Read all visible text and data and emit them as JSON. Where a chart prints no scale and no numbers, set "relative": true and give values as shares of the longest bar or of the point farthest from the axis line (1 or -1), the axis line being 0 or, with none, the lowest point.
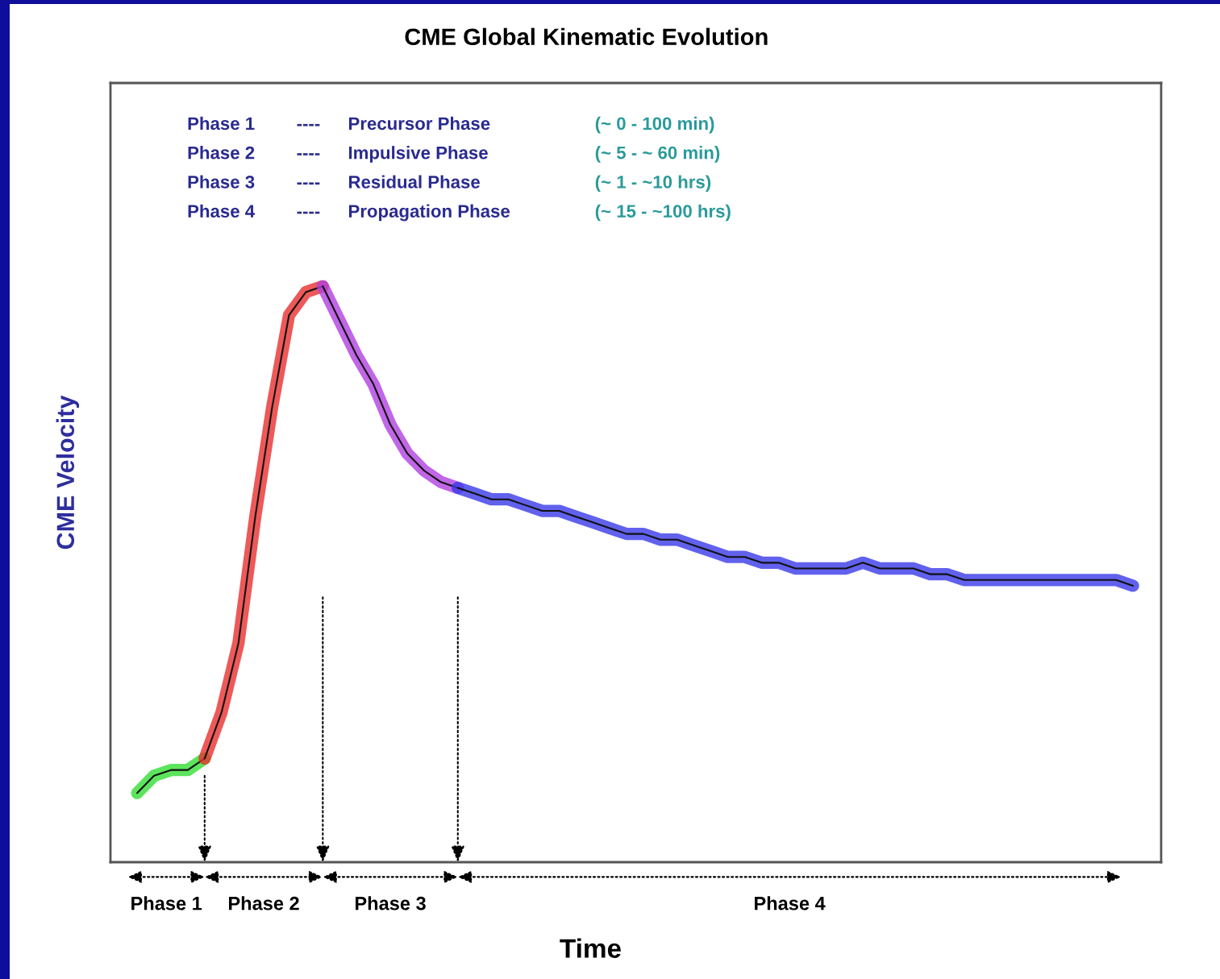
{
  "chart_data": {
    "type": "line",
    "relative": true,
    "title": "CME Global Kinematic Evolution",
    "xlabel": "Time",
    "ylabel": "CME Velocity",
    "categories": [
      null,
      null,
      null,
      null,
      null,
      null,
      null,
      null,
      null,
      null,
      null,
      null,
      null,
      null,
      null,
      null,
      null,
      null,
      null,
      null,
      null,
      null,
      null,
      null,
      null,
      null,
      null,
      null,
      null,
      null,
      null,
      null,
      null,
      null,
      null,
      null,
      null,
      null,
      null,
      null,
      null,
      null,
      null,
      null,
      null,
      null,
      null,
      null,
      null,
      null,
      null,
      null,
      null,
      null,
      null,
      null,
      null,
      null,
      null,
      null
    ],
    "series": [
      {
        "color": "#33dd33",
        "values": [
          0.12,
          0.15,
          0.16,
          0.16,
          0.18,
          null,
          null,
          null,
          null,
          null,
          null,
          null,
          null,
          null,
          null,
          null,
          null,
          null,
          null,
          null,
          null,
          null,
          null,
          null,
          null,
          null,
          null,
          null,
          null,
          null,
          null,
          null,
          null,
          null,
          null,
          null,
          null,
          null,
          null,
          null,
          null,
          null,
          null,
          null,
          null,
          null,
          null,
          null,
          null,
          null,
          null,
          null,
          null,
          null,
          null,
          null,
          null,
          null,
          null,
          null
        ]
      },
      {
        "color": "#e83030",
        "values": [
          null,
          null,
          null,
          null,
          0.18,
          0.26,
          0.38,
          0.6,
          0.79,
          0.95,
          0.99,
          1.0,
          null,
          null,
          null,
          null,
          null,
          null,
          null,
          null,
          null,
          null,
          null,
          null,
          null,
          null,
          null,
          null,
          null,
          null,
          null,
          null,
          null,
          null,
          null,
          null,
          null,
          null,
          null,
          null,
          null,
          null,
          null,
          null,
          null,
          null,
          null,
          null,
          null,
          null,
          null,
          null,
          null,
          null,
          null,
          null,
          null,
          null,
          null,
          null
        ]
      },
      {
        "color": "#b040e0",
        "values": [
          null,
          null,
          null,
          null,
          null,
          null,
          null,
          null,
          null,
          null,
          null,
          1.0,
          0.94,
          0.88,
          0.83,
          0.76,
          0.71,
          0.68,
          0.66,
          0.65,
          null,
          null,
          null,
          null,
          null,
          null,
          null,
          null,
          null,
          null,
          null,
          null,
          null,
          null,
          null,
          null,
          null,
          null,
          null,
          null,
          null,
          null,
          null,
          null,
          null,
          null,
          null,
          null,
          null,
          null,
          null,
          null,
          null,
          null,
          null,
          null,
          null,
          null,
          null,
          null
        ]
      },
      {
        "color": "#3a3ae8",
        "values": [
          null,
          null,
          null,
          null,
          null,
          null,
          null,
          null,
          null,
          null,
          null,
          null,
          null,
          null,
          null,
          null,
          null,
          null,
          null,
          0.65,
          0.64,
          0.63,
          0.63,
          0.62,
          0.61,
          0.61,
          0.6,
          0.59,
          0.58,
          0.57,
          0.57,
          0.56,
          0.56,
          0.55,
          0.54,
          0.53,
          0.53,
          0.52,
          0.52,
          0.51,
          0.51,
          0.51,
          0.51,
          0.52,
          0.51,
          0.51,
          0.51,
          0.5,
          0.5,
          0.49,
          0.49,
          0.49,
          0.49,
          0.49,
          0.49,
          0.49,
          0.49,
          0.49,
          0.49,
          0.48
        ]
      }
    ],
    "annotations": [
      "Phase 1",
      "Phase 2",
      "Phase 3",
      "Phase 4",
      "Phase 1",
      "----",
      "Precursor Phase",
      "(~ 0 - 100 min)",
      "Phase 2",
      "----",
      "Impulsive Phase",
      "(~ 5 - ~ 60 min)",
      "Phase 3",
      "----",
      "Residual Phase",
      "(~ 1 - ~10 hrs)",
      "Phase 4",
      "----",
      "Propagation Phase",
      "(~ 15 - ~100 hrs)"
    ]
  }
}
